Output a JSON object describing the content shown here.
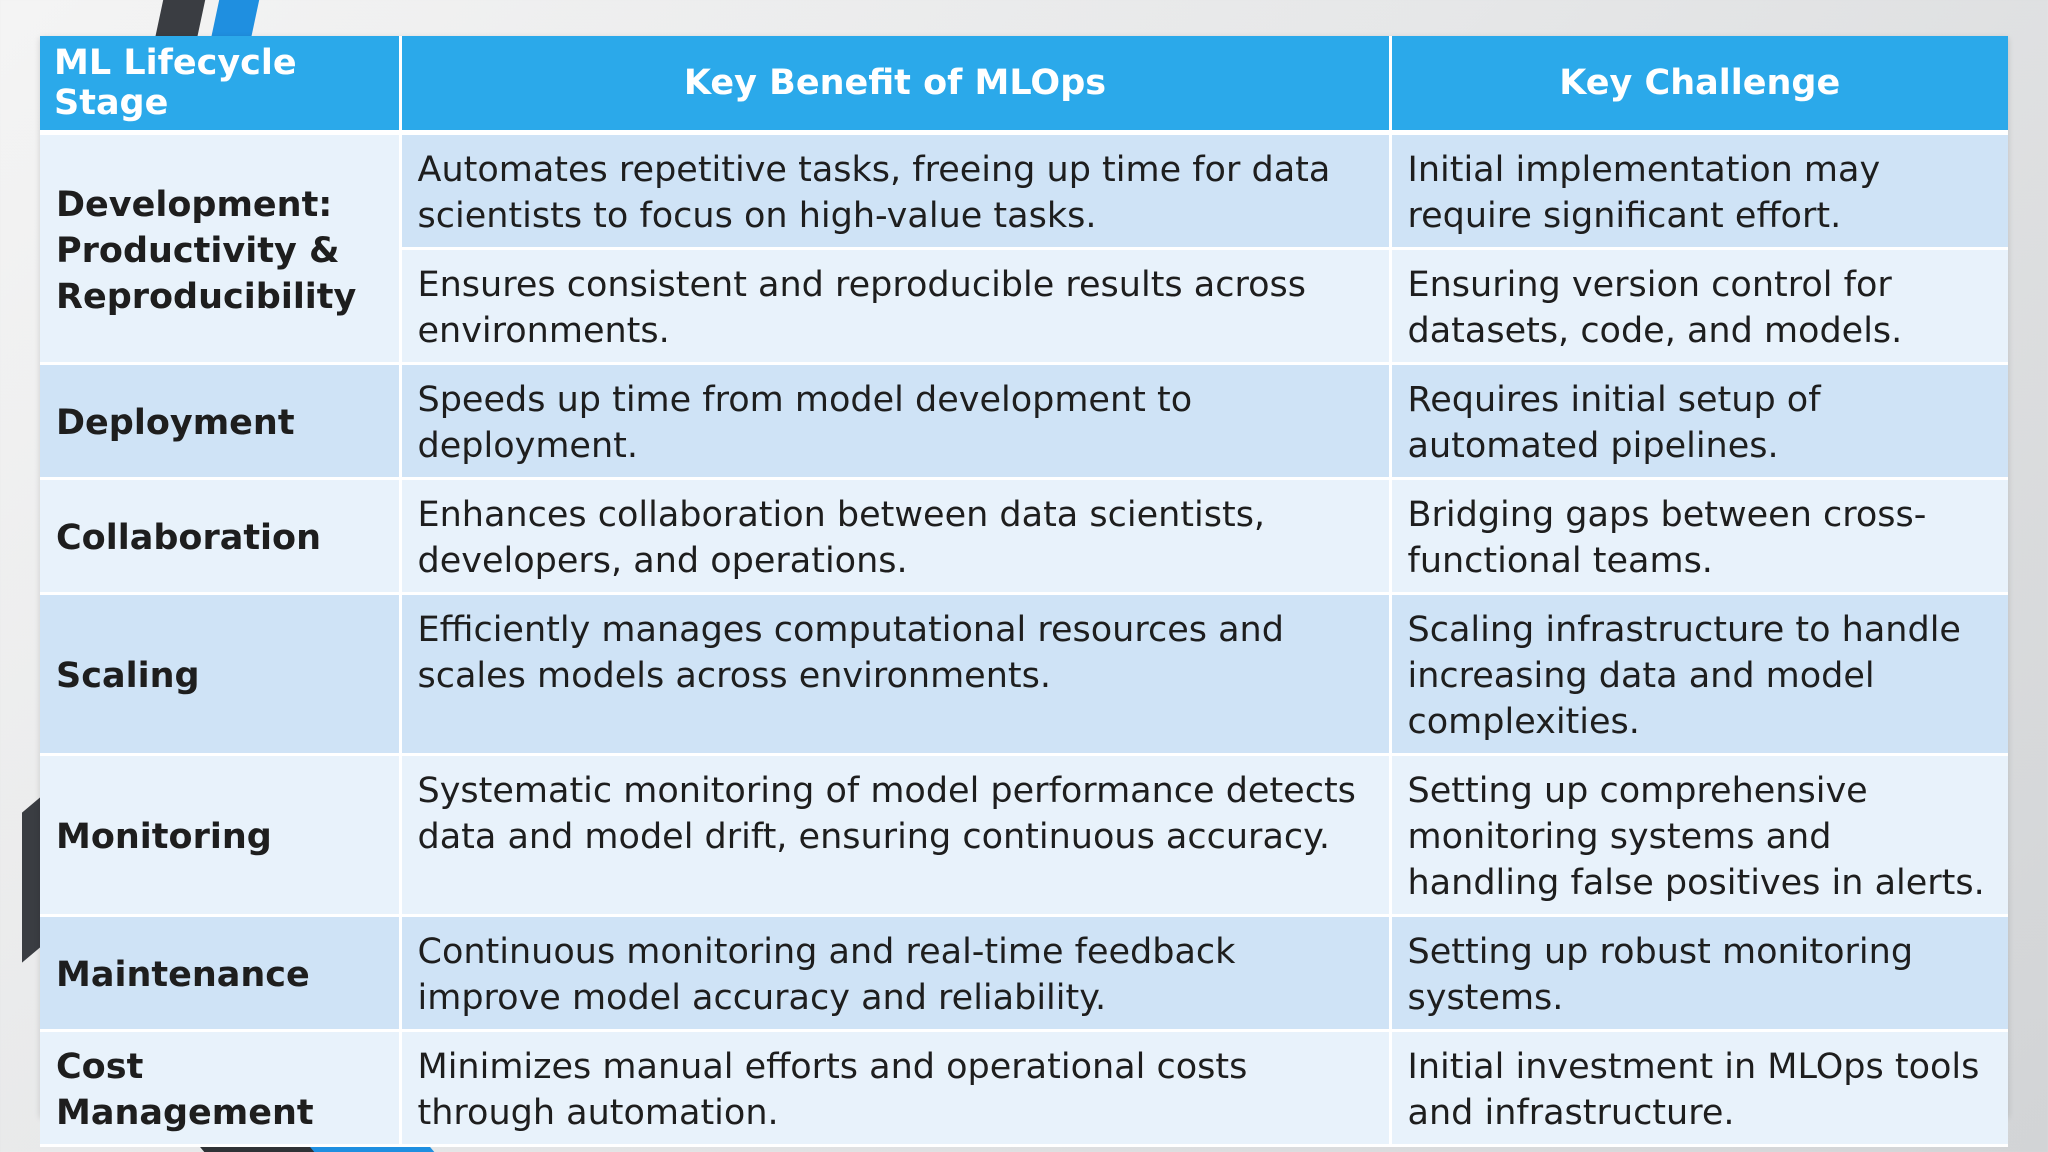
{
  "header": {
    "col1": "ML Lifecycle Stage",
    "col2": "Key Benefit of MLOps",
    "col3": "Key Challenge"
  },
  "rows": [
    {
      "stage": "Development: Productivity & Reproducibility",
      "benefit": "Automates repetitive tasks, freeing up time for data scientists to focus on high-value tasks.",
      "challenge": "Initial implementation may require significant effort."
    },
    {
      "stage": "",
      "benefit": "Ensures consistent and reproducible results across environments.",
      "challenge": "Ensuring version control for datasets, code, and models."
    },
    {
      "stage": "Deployment",
      "benefit": "Speeds up time from model development to deployment.",
      "challenge": "Requires initial setup of automated pipelines."
    },
    {
      "stage": "Collaboration",
      "benefit": "Enhances collaboration between data scientists, developers, and operations.",
      "challenge": "Bridging gaps between cross-functional teams."
    },
    {
      "stage": "Scaling",
      "benefit": "Efficiently manages computational resources and scales models across environments.",
      "challenge": "Scaling infrastructure to handle increasing data and model complexities."
    },
    {
      "stage": "Monitoring",
      "benefit": "Systematic monitoring of model performance detects data and model drift, ensuring continuous accuracy.",
      "challenge": "Setting up comprehensive monitoring systems and handling false positives in alerts."
    },
    {
      "stage": "Maintenance",
      "benefit": "Continuous monitoring and real-time feedback improve model accuracy and reliability.",
      "challenge": "Setting up robust monitoring systems."
    },
    {
      "stage": "Cost Management",
      "benefit": "Minimizes manual efforts and operational costs through automation.",
      "challenge": "Initial investment in MLOps tools and infrastructure."
    }
  ],
  "colors": {
    "header_bg": "#2ba9ea",
    "row_dark": "#cfe3f6",
    "row_light": "#e8f2fb",
    "accent_blue": "#1f8fe0",
    "accent_dark": "#3a3d42"
  }
}
